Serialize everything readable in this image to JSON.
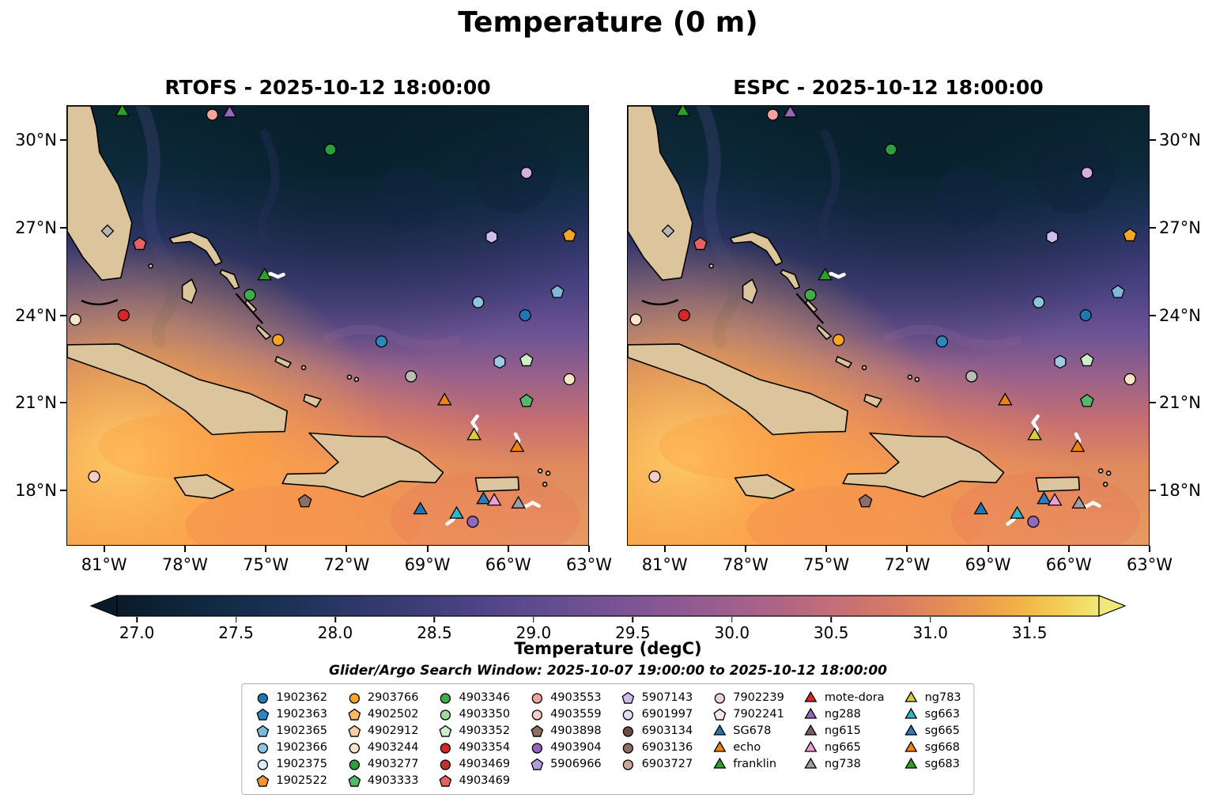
{
  "figure_title": "Temperature (0 m)",
  "panels": [
    {
      "title": "RTOFS - 2025-10-12 18:00:00"
    },
    {
      "title": "ESPC - 2025-10-12 18:00:00"
    }
  ],
  "axes": {
    "x_ticks": [
      {
        "label": "81°W",
        "lon": -81
      },
      {
        "label": "78°W",
        "lon": -78
      },
      {
        "label": "75°W",
        "lon": -75
      },
      {
        "label": "72°W",
        "lon": -72
      },
      {
        "label": "69°W",
        "lon": -69
      },
      {
        "label": "66°W",
        "lon": -66
      },
      {
        "label": "63°W",
        "lon": -63
      }
    ],
    "y_ticks": [
      {
        "label": "30°N",
        "lat": 30
      },
      {
        "label": "27°N",
        "lat": 27
      },
      {
        "label": "24°N",
        "lat": 24
      },
      {
        "label": "21°N",
        "lat": 21
      },
      {
        "label": "18°N",
        "lat": 18
      }
    ]
  },
  "colorbar": {
    "label": "Temperature (degC)",
    "ticks": [
      "27.0",
      "27.5",
      "28.0",
      "28.5",
      "29.0",
      "29.5",
      "30.0",
      "30.5",
      "31.0",
      "31.5"
    ]
  },
  "search_window": "Glider/Argo Search Window: 2025-10-07 19:00:00 to 2025-10-12 18:00:00",
  "legend": {
    "columns": [
      [
        {
          "label": "1902362",
          "shape": "circle",
          "color": "#2077b4"
        },
        {
          "label": "1902363",
          "shape": "pentagon",
          "color": "#2e86c1"
        },
        {
          "label": "1902365",
          "shape": "pentagon",
          "color": "#7fb8da"
        },
        {
          "label": "1902366",
          "shape": "circle",
          "color": "#8ec4e0"
        },
        {
          "label": "1902375",
          "shape": "circle",
          "color": "#dcedfa"
        },
        {
          "label": "1902522",
          "shape": "pentagon",
          "color": "#f0962e"
        }
      ],
      [
        {
          "label": "2903766",
          "shape": "circle",
          "color": "#f5a623"
        },
        {
          "label": "4902502",
          "shape": "pentagon",
          "color": "#f8b96a"
        },
        {
          "label": "4902912",
          "shape": "pentagon",
          "color": "#fbd0a0"
        },
        {
          "label": "4903244",
          "shape": "circle",
          "color": "#fce4c9"
        },
        {
          "label": "4903277",
          "shape": "circle",
          "color": "#2e9e3f"
        },
        {
          "label": "4903333",
          "shape": "pentagon",
          "color": "#56b66a"
        }
      ],
      [
        {
          "label": "4903346",
          "shape": "circle",
          "color": "#3fae49"
        },
        {
          "label": "4903350",
          "shape": "circle",
          "color": "#a2d89c"
        },
        {
          "label": "4903352",
          "shape": "pentagon",
          "color": "#cdeec8"
        },
        {
          "label": "4903354",
          "shape": "circle",
          "color": "#d62728"
        },
        {
          "label": "4903469",
          "shape": "circle",
          "color": "#c03030"
        },
        {
          "label": "4903469",
          "shape": "pentagon",
          "color": "#e46262"
        }
      ],
      [
        {
          "label": "4903553",
          "shape": "circle",
          "color": "#f4a49c"
        },
        {
          "label": "4903559",
          "shape": "circle",
          "color": "#f8cdc9"
        },
        {
          "label": "4903898",
          "shape": "pentagon",
          "color": "#8d6e63"
        },
        {
          "label": "4903904",
          "shape": "circle",
          "color": "#9467bd"
        },
        {
          "label": "5906966",
          "shape": "pentagon",
          "color": "#b39ddb"
        }
      ],
      [
        {
          "label": "5907143",
          "shape": "pentagon",
          "color": "#cdbde8"
        },
        {
          "label": "6901997",
          "shape": "circle",
          "color": "#e6dcf2"
        },
        {
          "label": "6903134",
          "shape": "circle",
          "color": "#6d4c41"
        },
        {
          "label": "6903136",
          "shape": "circle",
          "color": "#8d6e63"
        },
        {
          "label": "6903727",
          "shape": "circle",
          "color": "#c9a696"
        }
      ],
      [
        {
          "label": "7902239",
          "shape": "circle",
          "color": "#edd3d3"
        },
        {
          "label": "7902241",
          "shape": "pentagon",
          "color": "#f7e8e6"
        },
        {
          "label": "SG678",
          "shape": "triangle",
          "color": "#1f77b4"
        },
        {
          "label": "echo",
          "shape": "triangle",
          "color": "#f5820b"
        },
        {
          "label": "franklin",
          "shape": "triangle",
          "color": "#2ca02c"
        }
      ],
      [
        {
          "label": "mote-dora",
          "shape": "triangle",
          "color": "#d62728"
        },
        {
          "label": "ng288",
          "shape": "triangle",
          "color": "#9467bd"
        },
        {
          "label": "ng615",
          "shape": "triangle",
          "color": "#7a5c71"
        },
        {
          "label": "ng665",
          "shape": "triangle",
          "color": "#ec9ed8"
        },
        {
          "label": "ng738",
          "shape": "triangle",
          "color": "#9e9e9e"
        }
      ],
      [
        {
          "label": "ng783",
          "shape": "triangle",
          "color": "#d6cc3e"
        },
        {
          "label": "sg663",
          "shape": "triangle",
          "color": "#2bb8cc"
        },
        {
          "label": "sg665",
          "shape": "triangle",
          "color": "#2d7bbf"
        },
        {
          "label": "sg668",
          "shape": "triangle",
          "color": "#f5820b"
        },
        {
          "label": "sg683",
          "shape": "triangle",
          "color": "#2ca02c"
        }
      ]
    ]
  },
  "chart_data": {
    "type": "heatmap",
    "title": "Temperature (0 m)",
    "panel_titles": [
      "RTOFS - 2025-10-12 18:00:00",
      "ESPC - 2025-10-12 18:00:00"
    ],
    "value_label": "Temperature (degC)",
    "value_ticks": [
      27.0,
      27.5,
      28.0,
      28.5,
      29.0,
      29.5,
      30.0,
      30.5,
      31.0,
      31.5
    ],
    "colorbar_extend": "both",
    "lon_range": [
      -82.4,
      -63.0
    ],
    "lat_range": [
      16.1,
      31.2
    ],
    "colormap_stops": [
      {
        "pos": 0,
        "color": "#0a1a28"
      },
      {
        "pos": 0.05,
        "color": "#0d2336"
      },
      {
        "pos": 0.11,
        "color": "#122c46"
      },
      {
        "pos": 0.17,
        "color": "#1b3155"
      },
      {
        "pos": 0.23,
        "color": "#2b3766"
      },
      {
        "pos": 0.3,
        "color": "#3c3c76"
      },
      {
        "pos": 0.37,
        "color": "#4f4486"
      },
      {
        "pos": 0.44,
        "color": "#634d90"
      },
      {
        "pos": 0.51,
        "color": "#795394"
      },
      {
        "pos": 0.58,
        "color": "#8f5a92"
      },
      {
        "pos": 0.65,
        "color": "#a7618a"
      },
      {
        "pos": 0.72,
        "color": "#c06c7b"
      },
      {
        "pos": 0.79,
        "color": "#d67a67"
      },
      {
        "pos": 0.85,
        "color": "#e68f53"
      },
      {
        "pos": 0.91,
        "color": "#f0ad46"
      },
      {
        "pos": 0.96,
        "color": "#f3cd52"
      },
      {
        "pos": 1,
        "color": "#f0e878"
      }
    ],
    "markers": [
      {
        "lon": -80.35,
        "lat": 31.0,
        "shape": "triangle",
        "color": "#2ca02c",
        "name": "sg683"
      },
      {
        "lon": -77.0,
        "lat": 30.9,
        "shape": "circle",
        "color": "#f4a49c"
      },
      {
        "lon": -76.35,
        "lat": 30.95,
        "shape": "triangle",
        "color": "#9467bd",
        "name": "ng288"
      },
      {
        "lon": -72.6,
        "lat": 29.7,
        "shape": "circle",
        "color": "#2e9e3f"
      },
      {
        "lon": -65.3,
        "lat": 28.9,
        "shape": "circle",
        "color": "#d5aee2"
      },
      {
        "lon": -80.9,
        "lat": 26.9,
        "shape": "diamond",
        "color": "#b5b5b5"
      },
      {
        "lon": -79.7,
        "lat": 26.45,
        "shape": "pentagon",
        "color": "#e46262"
      },
      {
        "lon": -66.6,
        "lat": 26.7,
        "shape": "hexagon",
        "color": "#cdbde8"
      },
      {
        "lon": -63.7,
        "lat": 26.75,
        "shape": "pentagon",
        "color": "#f5a623"
      },
      {
        "lon": -75.05,
        "lat": 25.35,
        "shape": "triangle",
        "color": "#2ca02c",
        "name": "franklin",
        "track": [
          [
            8,
            -3
          ],
          [
            17,
            1
          ],
          [
            24,
            -2
          ]
        ]
      },
      {
        "lon": -75.6,
        "lat": 24.7,
        "shape": "circle",
        "color": "#3fae49"
      },
      {
        "lon": -67.1,
        "lat": 24.45,
        "shape": "circle",
        "color": "#8ec4e0"
      },
      {
        "lon": -65.35,
        "lat": 24.0,
        "shape": "circle",
        "color": "#2077b4"
      },
      {
        "lon": -80.3,
        "lat": 24.0,
        "shape": "circle",
        "color": "#d62728"
      },
      {
        "lon": -82.1,
        "lat": 23.85,
        "shape": "circle",
        "color": "#fce4c9"
      },
      {
        "lon": -74.55,
        "lat": 23.15,
        "shape": "circle",
        "color": "#f5a623"
      },
      {
        "lon": -70.7,
        "lat": 23.1,
        "shape": "circle",
        "color": "#2e86c1"
      },
      {
        "lon": -64.15,
        "lat": 24.8,
        "shape": "pentagon",
        "color": "#7fb8da"
      },
      {
        "lon": -65.3,
        "lat": 22.45,
        "shape": "pentagon",
        "color": "#cdeec8"
      },
      {
        "lon": -66.3,
        "lat": 22.4,
        "shape": "hexagon",
        "color": "#9fc8e8"
      },
      {
        "lon": -69.6,
        "lat": 21.9,
        "shape": "circle",
        "color": "#b9beb2"
      },
      {
        "lon": -63.7,
        "lat": 21.8,
        "shape": "circle",
        "color": "#fce4c9"
      },
      {
        "lon": -68.35,
        "lat": 21.05,
        "shape": "triangle",
        "color": "#f5820b",
        "name": "echo"
      },
      {
        "lon": -65.3,
        "lat": 21.05,
        "shape": "pentagon",
        "color": "#56b66a"
      },
      {
        "lon": -67.25,
        "lat": 19.85,
        "shape": "triangle",
        "color": "#d6cc3e",
        "name": "ng783",
        "track": [
          [
            3,
            -9
          ],
          [
            -2,
            -17
          ],
          [
            4,
            -25
          ]
        ]
      },
      {
        "lon": -65.65,
        "lat": 19.45,
        "shape": "triangle",
        "color": "#f5820b",
        "name": "sg668",
        "track": [
          [
            2,
            -9
          ],
          [
            -2,
            -17
          ]
        ]
      },
      {
        "lon": -81.4,
        "lat": 18.45,
        "shape": "circle",
        "color": "#f8cdc9"
      },
      {
        "lon": -73.55,
        "lat": 17.6,
        "shape": "pentagon",
        "color": "#8d6e63"
      },
      {
        "lon": -69.25,
        "lat": 17.3,
        "shape": "triangle",
        "color": "#1f77b4",
        "name": "SG678"
      },
      {
        "lon": -67.9,
        "lat": 17.15,
        "shape": "triangle",
        "color": "#2bb8cc",
        "name": "sg663",
        "track": [
          [
            -5,
            7
          ],
          [
            -12,
            12
          ]
        ]
      },
      {
        "lon": -66.9,
        "lat": 17.65,
        "shape": "triangle",
        "color": "#2d7bbf",
        "name": "sg665"
      },
      {
        "lon": -66.5,
        "lat": 17.6,
        "shape": "triangle",
        "color": "#ec9ed8",
        "name": "ng665"
      },
      {
        "lon": -65.6,
        "lat": 17.5,
        "shape": "triangle",
        "color": "#9e9e9e",
        "name": "ng738",
        "track": [
          [
            9,
            3
          ],
          [
            18,
            -2
          ],
          [
            26,
            2
          ]
        ]
      },
      {
        "lon": -67.3,
        "lat": 16.9,
        "shape": "circle",
        "color": "#9467bd"
      }
    ]
  }
}
